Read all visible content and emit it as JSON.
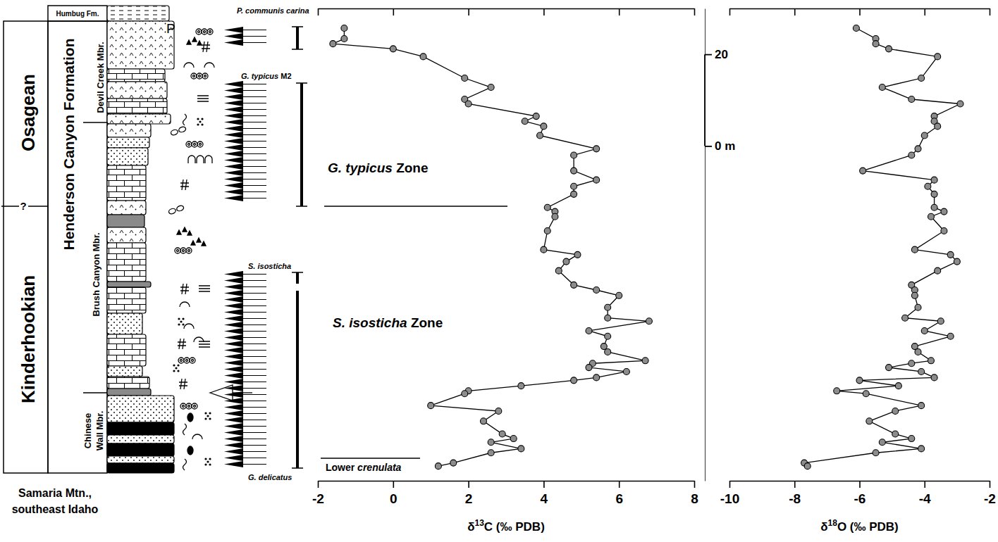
{
  "chart_data": {
    "type": "line",
    "y": [
      25.7,
      23.4,
      22.3,
      21.2,
      19.5,
      14.8,
      12.8,
      10.2,
      9.2,
      6.5,
      5.4,
      4.3,
      2.3,
      -0.6,
      -2.0,
      -5.4,
      -7.4,
      -8.8,
      -10.5,
      -13.4,
      -14.3,
      -15.4,
      -18.5,
      -22.6,
      -23.7,
      -25.2,
      -27.2,
      -30.3,
      -31.4,
      -32.6,
      -35.2,
      -37.5,
      -38.2,
      -40.3,
      -41.5,
      -43.7,
      -44.9,
      -46.8,
      -47.4,
      -48.3,
      -49.2,
      -50.5,
      -51.1,
      -52.3,
      -53.4,
      -54.0,
      -56.6,
      -57.8,
      -60.0,
      -62.8,
      -63.8,
      -64.6,
      -66.0,
      -66.9,
      -69.1,
      -69.8
    ],
    "ylim": [
      -73,
      30
    ],
    "yticks": [
      {
        "value": 0,
        "label": "0 m"
      },
      20
    ],
    "series": [
      {
        "values": [
          -1.3,
          -1.3,
          -1.6,
          0.0,
          0.8,
          1.9,
          2.6,
          1.9,
          2.0,
          3.8,
          3.5,
          4.0,
          3.9,
          5.4,
          4.8,
          4.8,
          5.4,
          4.8,
          4.8,
          4.1,
          4.3,
          4.3,
          4.1,
          4.0,
          4.9,
          4.6,
          4.4,
          4.8,
          5.4,
          6.0,
          5.7,
          5.7,
          6.8,
          5.2,
          5.7,
          5.6,
          5.7,
          6.7,
          5.3,
          5.2,
          6.2,
          5.4,
          4.8,
          3.4,
          2.0,
          1.9,
          1.0,
          2.8,
          2.4,
          2.9,
          3.2,
          2.6,
          3.4,
          2.6,
          1.6,
          1.2
        ],
        "xlabel": "δ13C (‰ PDB)",
        "xlim": [
          -2,
          8
        ],
        "xticks": [
          -2,
          0,
          2,
          4,
          6,
          8
        ],
        "color": "#000000",
        "marker": "circle"
      },
      {
        "values": [
          -6.1,
          -5.5,
          -5.5,
          -5.1,
          -3.6,
          -4.1,
          -5.3,
          -4.4,
          -2.9,
          -3.7,
          -3.7,
          -3.6,
          -4.0,
          -4.2,
          -4.4,
          -5.9,
          -3.7,
          -3.9,
          -3.7,
          -3.7,
          -3.4,
          -3.8,
          -3.4,
          -4.3,
          -3.2,
          -3.0,
          -3.6,
          -4.4,
          -4.3,
          -4.3,
          -4.2,
          -4.6,
          -3.5,
          -4.0,
          -3.2,
          -4.3,
          -4.2,
          -3.8,
          -4.4,
          -5.1,
          -4.1,
          -3.7,
          -6.0,
          -4.8,
          -6.7,
          -5.8,
          -4.1,
          -4.9,
          -5.7,
          -4.9,
          -4.4,
          -5.3,
          -4.1,
          -5.5,
          -7.7,
          -7.6
        ],
        "xlabel": "δ18O (‰ PDB)",
        "xlim": [
          -10,
          -2
        ],
        "xticks": [
          -10,
          -8,
          -6,
          -4,
          -2
        ],
        "color": "#000000",
        "marker": "circle"
      }
    ],
    "stages": [
      "Osagean",
      "Kinderhookian"
    ],
    "stage_boundary": "?",
    "formation": "Henderson Canyon Formation",
    "overlying_unit": "Humbug Fm.",
    "members": [
      [
        "Devil Creek Mbr."
      ],
      [
        "Brush Canyon Mbr."
      ],
      [
        "Chinese",
        "Wall Mbr."
      ]
    ],
    "symbol": "P",
    "conodont_samples": [
      "P. communis carina",
      "G. typicus M2",
      "S. isosticha",
      "G. delicatus"
    ],
    "zones": [
      "G. typicus Zone",
      "S. isosticha Zone",
      "Lower crenulata"
    ],
    "locality": [
      "Samaria Mtn.,",
      "southeast Idaho"
    ]
  }
}
